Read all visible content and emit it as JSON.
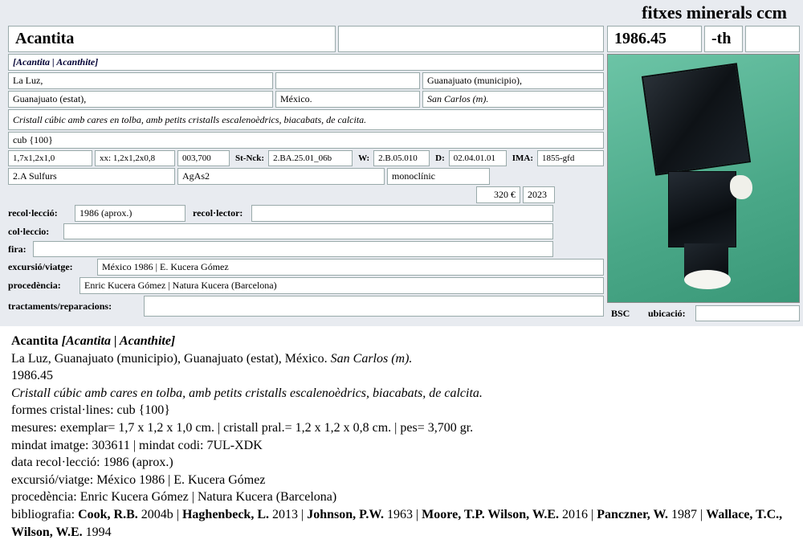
{
  "header": {
    "title": "fitxes minerals ccm"
  },
  "topRow": {
    "name": "Acantita",
    "number": "1986.45",
    "suffix": "-th"
  },
  "synonyms": "[Acantita | Acanthite]",
  "locality": {
    "town": "La Luz,",
    "municipality": "Guanajuato (municipio),",
    "state": "Guanajuato (estat),",
    "country": "México.",
    "mine": "San Carlos (m)."
  },
  "description": "Cristall cúbic amb cares en tolba, amb petits cristalls escalenoèdrics, biacabats, de calcita.",
  "forms": "cub {100}",
  "measures": {
    "specimen": "1,7x1,2x1,0",
    "mainLabel": "xx:",
    "main": "1,2x1,2x0,8",
    "weight": "003,700",
    "stNckLabel": "St-Nck:",
    "stNck": "2.BA.25.01_06b",
    "wLabel": "W:",
    "w": "2.B.05.010",
    "dLabel": "D:",
    "d": "02.04.01.01",
    "imaLabel": "IMA:",
    "ima": "1855-gfd"
  },
  "class": {
    "name": "2.A Sulfurs",
    "formula": "AgAs2",
    "system": "monoclínic"
  },
  "value": {
    "price": "320 €",
    "year": "2023"
  },
  "labels": {
    "recolleccio": "recol·lecció:",
    "recollector": "recol·lector:",
    "colleccio": "col·leccio:",
    "fira": "fira:",
    "excursio": "excursió/viatge:",
    "procedencia": "procedència:",
    "tractaments": "tractaments/reparacions:",
    "bsc": "BSC",
    "ubicacio": "ubicació:"
  },
  "fields": {
    "recolleccio": "1986 (aprox.)",
    "recollector": "",
    "colleccio": "",
    "fira": "",
    "excursio": "México 1986 | E. Kucera Gómez",
    "procedencia": "Enric Kucera Gómez | Natura Kucera (Barcelona)",
    "tractaments": "",
    "ubicacio": ""
  },
  "summary": {
    "title": "Acantita",
    "synonyms": "[Acantita | Acanthite]",
    "locality": "La Luz,  Guanajuato (municipio), Guanajuato (estat), México.",
    "mine": "San Carlos (m).",
    "number": "1986.45",
    "description": "Cristall cúbic amb cares en tolba, amb petits cristalls escalenoèdrics, biacabats, de calcita.",
    "formsLabel": "formes cristal·lines:",
    "forms": "cub {100}",
    "measuresLabel": "mesures:",
    "measures": "exemplar= 1,7 x 1,2 x 1,0 cm. | cristall pral.= 1,2 x 1,2 x 0,8 cm. | pes= 3,700 gr.",
    "mindatLabel": "mindat imatge:",
    "mindatImg": "303611",
    "mindatCodeLabel": "mindat codi:",
    "mindatCode": "7UL-XDK",
    "dateLabel": "data recol·lecció:",
    "date": "1986 (aprox.)",
    "excursioLabel": "excursió/viatge:",
    "excursio": "México 1986 | E. Kucera Gómez",
    "procLabel": "procedència:",
    "proc": "Enric Kucera Gómez | Natura Kucera (Barcelona)",
    "biblioLabel": "bibliografia:",
    "biblio": [
      {
        "author": "Cook, R.B.",
        "year": "2004b"
      },
      {
        "author": "Haghenbeck, L.",
        "year": "2013"
      },
      {
        "author": "Johnson, P.W.",
        "year": "1963"
      },
      {
        "author": "Moore, T.P. Wilson, W.E.",
        "year": "2016"
      },
      {
        "author": "Panczner, W.",
        "year": "1987"
      },
      {
        "author": "Wallace, T.C., Wilson, W.E.",
        "year": "1994"
      }
    ]
  },
  "colors": {
    "formBg": "#e8ebf0",
    "cellBorder": "#99aaaa",
    "imgBg": "#5db89a"
  }
}
